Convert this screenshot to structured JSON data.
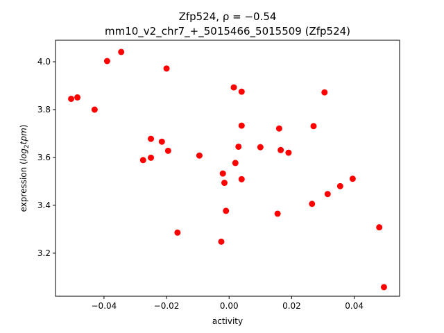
{
  "chart_data": {
    "type": "scatter",
    "title_line1": "Zfp524, ρ = −0.54",
    "title_line2": "mm10_v2_chr7_+_5015466_5015509 (Zfp524)",
    "xlabel": "activity",
    "ylabel_prefix": "expression (",
    "ylabel_math": "log",
    "ylabel_sub": "2",
    "ylabel_math2": "tpm",
    "ylabel_suffix": ")",
    "xlim": [
      -0.0555,
      0.0545
    ],
    "ylim": [
      3.02,
      4.09
    ],
    "xticks": [
      -0.04,
      -0.02,
      0.0,
      0.02,
      0.04
    ],
    "xtick_labels": [
      "−0.04",
      "−0.02",
      "0.00",
      "0.02",
      "0.04"
    ],
    "yticks": [
      3.2,
      3.4,
      3.6,
      3.8,
      4.0
    ],
    "ytick_labels": [
      "3.2",
      "3.4",
      "3.6",
      "3.8",
      "4.0"
    ],
    "grid": false,
    "point_color": "#ff0000",
    "points": [
      {
        "x": -0.0505,
        "y": 3.845
      },
      {
        "x": -0.0485,
        "y": 3.851
      },
      {
        "x": -0.043,
        "y": 3.8
      },
      {
        "x": -0.039,
        "y": 4.003
      },
      {
        "x": -0.0345,
        "y": 4.041
      },
      {
        "x": -0.02,
        "y": 3.972
      },
      {
        "x": -0.025,
        "y": 3.678
      },
      {
        "x": -0.0215,
        "y": 3.666
      },
      {
        "x": -0.0195,
        "y": 3.628
      },
      {
        "x": -0.0275,
        "y": 3.589
      },
      {
        "x": -0.025,
        "y": 3.599
      },
      {
        "x": -0.0165,
        "y": 3.286
      },
      {
        "x": -0.0095,
        "y": 3.608
      },
      {
        "x": -0.0025,
        "y": 3.248
      },
      {
        "x": -0.002,
        "y": 3.533
      },
      {
        "x": -0.0015,
        "y": 3.494
      },
      {
        "x": -0.001,
        "y": 3.377
      },
      {
        "x": 0.0015,
        "y": 3.893
      },
      {
        "x": 0.004,
        "y": 3.875
      },
      {
        "x": 0.004,
        "y": 3.733
      },
      {
        "x": 0.003,
        "y": 3.645
      },
      {
        "x": 0.002,
        "y": 3.577
      },
      {
        "x": 0.004,
        "y": 3.509
      },
      {
        "x": 0.01,
        "y": 3.643
      },
      {
        "x": 0.016,
        "y": 3.721
      },
      {
        "x": 0.0165,
        "y": 3.631
      },
      {
        "x": 0.019,
        "y": 3.62
      },
      {
        "x": 0.0155,
        "y": 3.365
      },
      {
        "x": 0.027,
        "y": 3.731
      },
      {
        "x": 0.0305,
        "y": 3.872
      },
      {
        "x": 0.0265,
        "y": 3.406
      },
      {
        "x": 0.0315,
        "y": 3.447
      },
      {
        "x": 0.0355,
        "y": 3.48
      },
      {
        "x": 0.0395,
        "y": 3.511
      },
      {
        "x": 0.048,
        "y": 3.308
      },
      {
        "x": 0.0495,
        "y": 3.058
      }
    ]
  }
}
